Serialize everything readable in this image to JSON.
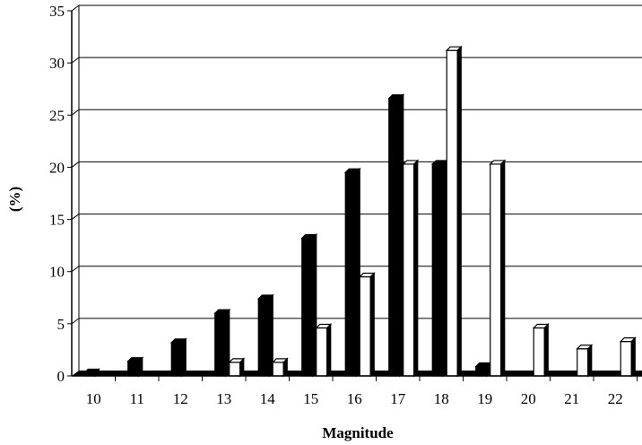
{
  "chart_data": {
    "type": "bar",
    "title": "",
    "xlabel": "Magnitude",
    "ylabel": "(%)",
    "ylim": [
      0,
      35
    ],
    "yticks": [
      0,
      5,
      10,
      15,
      20,
      25,
      30,
      35
    ],
    "categories": [
      "10",
      "11",
      "12",
      "13",
      "14",
      "15",
      "16",
      "17",
      "18",
      "19",
      "20",
      "21",
      "22"
    ],
    "grid": true,
    "legend": "none",
    "series": [
      {
        "color": "#000000",
        "values": [
          0.3,
          1.4,
          3.2,
          6.0,
          7.4,
          13.2,
          19.5,
          26.6,
          20.3,
          0.9,
          0,
          0,
          0
        ]
      },
      {
        "color": "#ffffff",
        "values": [
          0,
          0,
          0,
          1.3,
          1.3,
          4.6,
          9.5,
          20.3,
          31.2,
          20.3,
          4.6,
          2.6,
          3.3
        ]
      }
    ]
  }
}
